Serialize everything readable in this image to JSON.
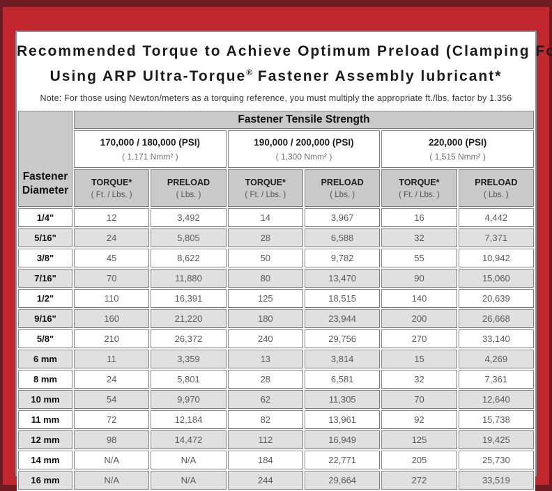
{
  "colors": {
    "outer_maroon": "#6d1a21",
    "border_red": "#c1272d",
    "header_gray": "#c9c9c9",
    "row_alt_gray": "#e0e0e0",
    "value_text_gray": "#5a5a5a"
  },
  "title": {
    "line1": "Recommended Torque to Achieve Optimum Preload (Clamping Force)",
    "line2_pre": "Using ARP Ultra-Torque",
    "line2_sup": "®",
    "line2_post": " Fastener Assembly lubricant*"
  },
  "note": "Note: For those using Newton/meters as a torquing reference, you must multiply the appropriate ft./lbs. factor by 1.356",
  "table": {
    "corner_label": "Fastener\nDiameter",
    "group_header": "Fastener Tensile Strength",
    "strength_columns": [
      {
        "psi": "170,000 / 180,000 (PSI)",
        "nmm": "( 1,171 Nmm² )"
      },
      {
        "psi": "190,000 / 200,000 (PSI)",
        "nmm": "( 1,300 Nmm² )"
      },
      {
        "psi": "220,000 (PSI)",
        "nmm": "( 1,515 Nmm² )"
      }
    ],
    "subheader": {
      "torque_label": "TORQUE*",
      "torque_unit": "( Ft. / Lbs. )",
      "preload_label": "PRELOAD",
      "preload_unit": "( Lbs. )"
    },
    "rows": [
      {
        "diameter": "1/4\"",
        "values": [
          "12",
          "3,492",
          "14",
          "3,967",
          "16",
          "4,442"
        ]
      },
      {
        "diameter": "5/16\"",
        "values": [
          "24",
          "5,805",
          "28",
          "6,588",
          "32",
          "7,371"
        ]
      },
      {
        "diameter": "3/8\"",
        "values": [
          "45",
          "8,622",
          "50",
          "9,782",
          "55",
          "10,942"
        ]
      },
      {
        "diameter": "7/16\"",
        "values": [
          "70",
          "11,880",
          "80",
          "13,470",
          "90",
          "15,060"
        ]
      },
      {
        "diameter": "1/2\"",
        "values": [
          "110",
          "16,391",
          "125",
          "18,515",
          "140",
          "20,639"
        ]
      },
      {
        "diameter": "9/16\"",
        "values": [
          "160",
          "21,220",
          "180",
          "23,944",
          "200",
          "26,668"
        ]
      },
      {
        "diameter": "5/8\"",
        "values": [
          "210",
          "26,372",
          "240",
          "29,756",
          "270",
          "33,140"
        ]
      },
      {
        "diameter": "6 mm",
        "values": [
          "11",
          "3,359",
          "13",
          "3,814",
          "15",
          "4,269"
        ]
      },
      {
        "diameter": "8 mm",
        "values": [
          "24",
          "5,801",
          "28",
          "6,581",
          "32",
          "7,361"
        ]
      },
      {
        "diameter": "10 mm",
        "values": [
          "54",
          "9,970",
          "62",
          "11,305",
          "70",
          "12,640"
        ]
      },
      {
        "diameter": "11 mm",
        "values": [
          "72",
          "12,184",
          "82",
          "13,961",
          "92",
          "15,738"
        ]
      },
      {
        "diameter": "12 mm",
        "values": [
          "98",
          "14,472",
          "112",
          "16,949",
          "125",
          "19,425"
        ]
      },
      {
        "diameter": "14 mm",
        "values": [
          "N/A",
          "N/A",
          "184",
          "22,771",
          "205",
          "25,730"
        ]
      },
      {
        "diameter": "16 mm",
        "values": [
          "N/A",
          "N/A",
          "244",
          "29,664",
          "272",
          "33,519"
        ]
      }
    ]
  }
}
